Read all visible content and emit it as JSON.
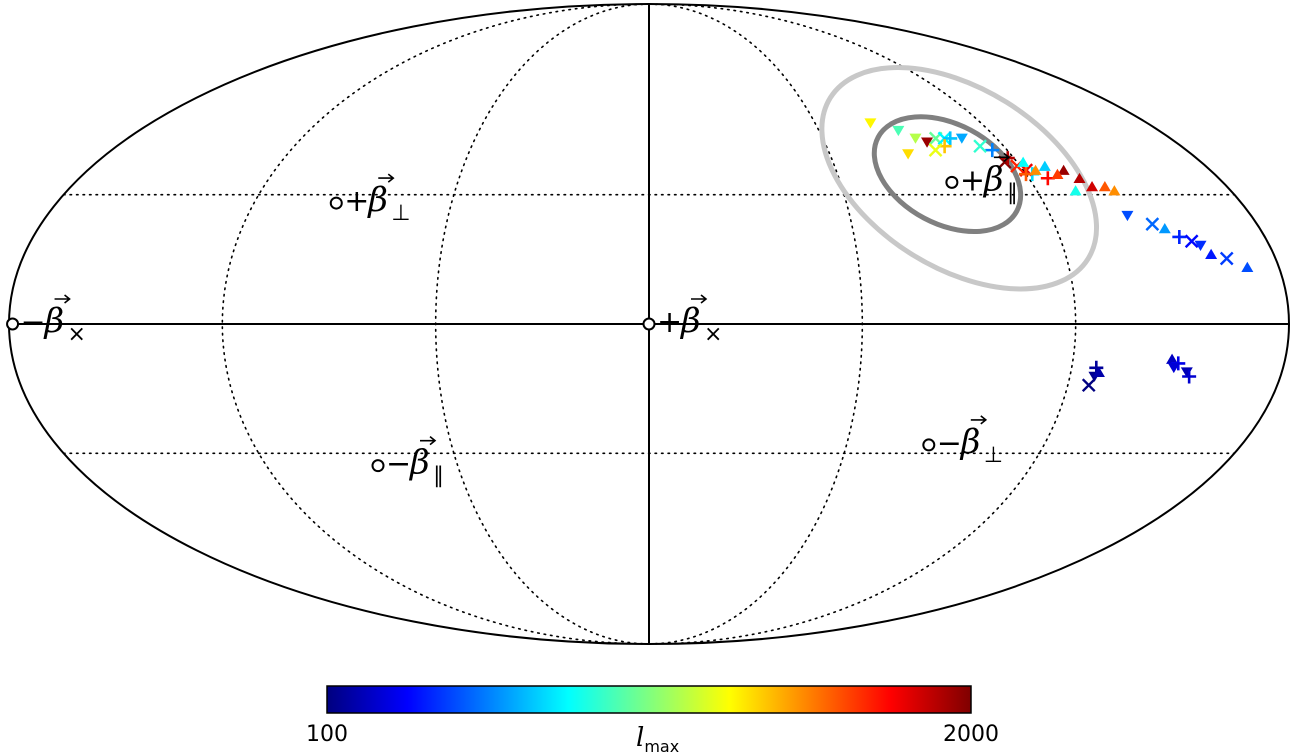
{
  "chart_data": {
    "type": "scatter",
    "projection": "mollweide",
    "grid": true,
    "graticule": {
      "longitudes_deg": [
        -180,
        -120,
        -60,
        0,
        60,
        120,
        180
      ],
      "latitudes_deg": [
        -30,
        0,
        30
      ]
    },
    "reference_points": [
      {
        "sign": "+",
        "symbol": "β",
        "subscript": "×",
        "lon": 0,
        "lat": 0
      },
      {
        "sign": "−",
        "symbol": "β",
        "subscript": "×",
        "lon": -179,
        "lat": 0
      },
      {
        "sign": "+",
        "symbol": "β",
        "subscript": "⊥",
        "lon": -95,
        "lat": 28
      },
      {
        "sign": "−",
        "symbol": "β",
        "subscript": "⊥",
        "lon": 85,
        "lat": -28
      },
      {
        "sign": "+",
        "symbol": "β",
        "subscript": "∥",
        "lon": 95,
        "lat": 33
      },
      {
        "sign": "−",
        "symbol": "β",
        "subscript": "∥",
        "lon": -85,
        "lat": -33
      }
    ],
    "contours": [
      {
        "level": "inner",
        "color": "#808080",
        "lon": 95,
        "lat": 35,
        "a_deg": 25,
        "b_deg": 10,
        "tilt_deg": -28
      },
      {
        "level": "outer",
        "color": "#c8c8c8",
        "lon": 98,
        "lat": 34,
        "a_deg": 48,
        "b_deg": 18,
        "tilt_deg": -32
      }
    ],
    "markers": [
      {
        "m": "v",
        "lon": 80,
        "lat": 48,
        "l": 1300
      },
      {
        "m": "v",
        "lon": 88,
        "lat": 46,
        "l": 950
      },
      {
        "m": "v",
        "lon": 92,
        "lat": 44,
        "l": 1150
      },
      {
        "m": "v",
        "lon": 95,
        "lat": 43,
        "l": 1950
      },
      {
        "m": "v",
        "lon": 86,
        "lat": 40,
        "l": 1350
      },
      {
        "m": "x",
        "lon": 99,
        "lat": 44,
        "l": 1000
      },
      {
        "m": "x",
        "lon": 102,
        "lat": 44,
        "l": 800
      },
      {
        "m": "+",
        "lon": 104,
        "lat": 44,
        "l": 700
      },
      {
        "m": "+",
        "lon": 100,
        "lat": 42,
        "l": 1400
      },
      {
        "m": "x",
        "lon": 96,
        "lat": 41,
        "l": 1250
      },
      {
        "m": "v",
        "lon": 108,
        "lat": 44,
        "l": 650
      },
      {
        "m": "+",
        "lon": 115,
        "lat": 41,
        "l": 580
      },
      {
        "m": "x",
        "lon": 112,
        "lat": 42,
        "l": 900
      },
      {
        "m": "x",
        "lon": 116,
        "lat": 38,
        "l": 2000
      },
      {
        "m": "+",
        "lon": 118,
        "lat": 39,
        "l": 1900
      },
      {
        "m": "x",
        "lon": 119,
        "lat": 37,
        "l": 1700
      },
      {
        "m": "x",
        "lon": 121,
        "lat": 36,
        "l": 1800
      },
      {
        "m": "^",
        "lon": 122,
        "lat": 38,
        "l": 820
      },
      {
        "m": "+",
        "lon": 122,
        "lat": 35,
        "l": 750
      },
      {
        "m": "+",
        "lon": 120,
        "lat": 35,
        "l": 1600
      },
      {
        "m": "^",
        "lon": 124,
        "lat": 36,
        "l": 1500
      },
      {
        "m": "^",
        "lon": 128,
        "lat": 37,
        "l": 720
      },
      {
        "m": "+",
        "lon": 126,
        "lat": 34,
        "l": 1750
      },
      {
        "m": "^",
        "lon": 133,
        "lat": 36,
        "l": 1950
      },
      {
        "m": "^",
        "lon": 130,
        "lat": 35,
        "l": 1650
      },
      {
        "m": "^",
        "lon": 136,
        "lat": 34,
        "l": 1900
      },
      {
        "m": "^",
        "lon": 138,
        "lat": 32,
        "l": 1850
      },
      {
        "m": "^",
        "lon": 132,
        "lat": 31,
        "l": 850
      },
      {
        "m": "^",
        "lon": 142,
        "lat": 32,
        "l": 1600
      },
      {
        "m": "^",
        "lon": 144,
        "lat": 31,
        "l": 1500
      },
      {
        "m": "v",
        "lon": 143,
        "lat": 25,
        "l": 480
      },
      {
        "m": "x",
        "lon": 149,
        "lat": 23,
        "l": 530
      },
      {
        "m": "^",
        "lon": 152,
        "lat": 22,
        "l": 620
      },
      {
        "m": "+",
        "lon": 155,
        "lat": 20,
        "l": 400
      },
      {
        "m": "x",
        "lon": 158,
        "lat": 19,
        "l": 350
      },
      {
        "m": "v",
        "lon": 160,
        "lat": 18,
        "l": 420
      },
      {
        "m": "^",
        "lon": 162,
        "lat": 16,
        "l": 380
      },
      {
        "m": "x",
        "lon": 166,
        "lat": 15,
        "l": 450
      },
      {
        "m": "^",
        "lon": 171,
        "lat": 13,
        "l": 480
      },
      {
        "m": "+",
        "lon": 127,
        "lat": -10,
        "l": 150
      },
      {
        "m": "v",
        "lon": 127,
        "lat": -12,
        "l": 130
      },
      {
        "m": "^",
        "lon": 128,
        "lat": -11,
        "l": 180
      },
      {
        "m": "x",
        "lon": 126,
        "lat": -14,
        "l": 100
      },
      {
        "m": "^",
        "lon": 148,
        "lat": -8,
        "l": 220
      },
      {
        "m": "+",
        "lon": 150,
        "lat": -9,
        "l": 300
      },
      {
        "m": "v",
        "lon": 149,
        "lat": -10,
        "l": 260
      },
      {
        "m": "v",
        "lon": 153,
        "lat": -11,
        "l": 200
      },
      {
        "m": "+",
        "lon": 154,
        "lat": -12,
        "l": 250
      }
    ],
    "colorbar": {
      "min": 100,
      "max": 2000,
      "min_label": "100",
      "max_label": "2000",
      "label_main": "l",
      "label_sub": "max",
      "colormap": "jet"
    }
  }
}
